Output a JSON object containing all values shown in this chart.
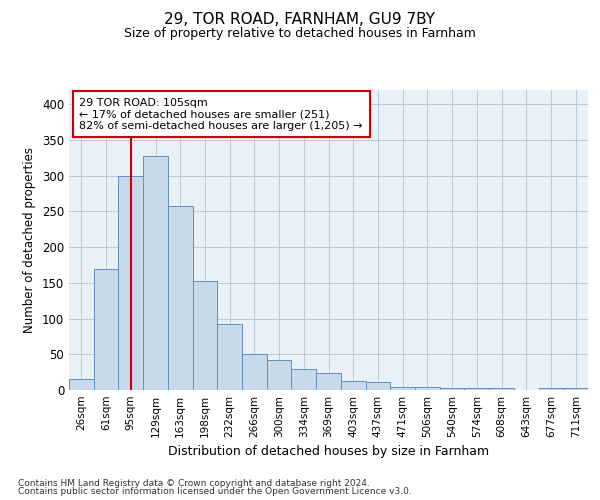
{
  "title1": "29, TOR ROAD, FARNHAM, GU9 7BY",
  "title2": "Size of property relative to detached houses in Farnham",
  "xlabel": "Distribution of detached houses by size in Farnham",
  "ylabel": "Number of detached properties",
  "footer1": "Contains HM Land Registry data © Crown copyright and database right 2024.",
  "footer2": "Contains public sector information licensed under the Open Government Licence v3.0.",
  "annotation_line1": "29 TOR ROAD: 105sqm",
  "annotation_line2": "← 17% of detached houses are smaller (251)",
  "annotation_line3": "82% of semi-detached houses are larger (1,205) →",
  "bar_color": "#c8daea",
  "bar_edge_color": "#6090c0",
  "redline_color": "#cc0000",
  "bg_color": "#ffffff",
  "plot_bg_color": "#e8f0f8",
  "grid_color": "#b8ccd8",
  "bin_labels": [
    "26sqm",
    "61sqm",
    "95sqm",
    "129sqm",
    "163sqm",
    "198sqm",
    "232sqm",
    "266sqm",
    "300sqm",
    "334sqm",
    "369sqm",
    "403sqm",
    "437sqm",
    "471sqm",
    "506sqm",
    "540sqm",
    "574sqm",
    "608sqm",
    "643sqm",
    "677sqm",
    "711sqm"
  ],
  "bar_heights": [
    15,
    170,
    300,
    328,
    258,
    152,
    92,
    50,
    42,
    30,
    24,
    13,
    11,
    4,
    4,
    3,
    3,
    3,
    0,
    3,
    3
  ],
  "ylim": [
    0,
    420
  ],
  "yticks": [
    0,
    50,
    100,
    150,
    200,
    250,
    300,
    350,
    400
  ],
  "redline_x": 2.0
}
